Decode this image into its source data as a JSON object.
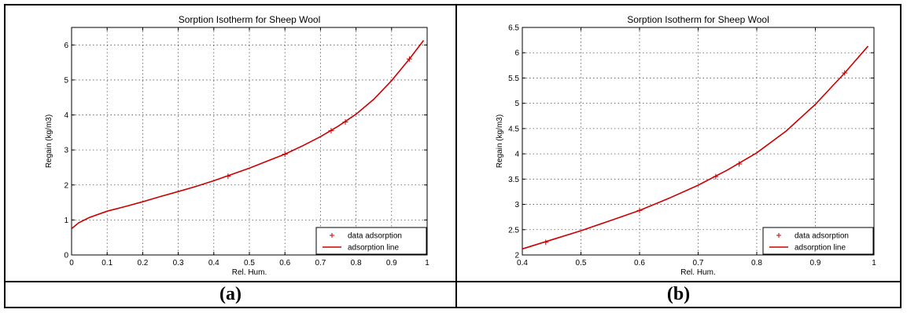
{
  "figure": {
    "caption_a": "(a)",
    "caption_b": "(b)"
  },
  "chart_data": [
    {
      "type": "line",
      "title": "Sorption Isotherm for Sheep Wool",
      "xlabel": "Rel. Hum.",
      "ylabel": "Regain (kg/m3)",
      "xlim": [
        0,
        1
      ],
      "ylim": [
        0,
        6.5
      ],
      "xticks": [
        "0",
        "0.1",
        "0.2",
        "0.3",
        "0.4",
        "0.5",
        "0.6",
        "0.7",
        "0.8",
        "0.9",
        "1"
      ],
      "yticks": [
        "0",
        "1",
        "2",
        "3",
        "4",
        "5",
        "6"
      ],
      "grid": true,
      "legend_position": "bottom-right",
      "series": [
        {
          "name": "data adsorption",
          "marker": "+",
          "color": "#cc0000",
          "x": [
            0.44,
            0.6,
            0.73,
            0.77,
            0.95
          ],
          "y": [
            2.25,
            2.88,
            3.55,
            3.8,
            5.6
          ]
        },
        {
          "name": "adsorption line",
          "line": "solid",
          "color": "#cc0000",
          "x": [
            0.0,
            0.02,
            0.05,
            0.1,
            0.15,
            0.2,
            0.25,
            0.3,
            0.35,
            0.4,
            0.45,
            0.5,
            0.55,
            0.6,
            0.65,
            0.7,
            0.75,
            0.8,
            0.85,
            0.9,
            0.95,
            0.99
          ],
          "y": [
            0.75,
            0.92,
            1.07,
            1.25,
            1.38,
            1.52,
            1.67,
            1.81,
            1.96,
            2.12,
            2.3,
            2.48,
            2.68,
            2.88,
            3.12,
            3.38,
            3.68,
            4.02,
            4.45,
            4.98,
            5.6,
            6.13
          ]
        }
      ]
    },
    {
      "type": "line",
      "title": "Sorption Isotherm for Sheep Wool",
      "xlabel": "Rel. Hum.",
      "ylabel": "Regain (kg/m3)",
      "xlim": [
        0.4,
        1
      ],
      "ylim": [
        2,
        6.5
      ],
      "xticks": [
        "0.4",
        "0.5",
        "0.6",
        "0.7",
        "0.8",
        "0.9",
        "1"
      ],
      "yticks": [
        "2",
        "2.5",
        "3",
        "3.5",
        "4",
        "4.5",
        "5",
        "5.5",
        "6",
        "6.5"
      ],
      "grid": true,
      "legend_position": "bottom-right",
      "series": [
        {
          "name": "data adsorption",
          "marker": "+",
          "color": "#cc0000",
          "x": [
            0.44,
            0.6,
            0.73,
            0.77,
            0.95
          ],
          "y": [
            2.25,
            2.88,
            3.55,
            3.8,
            5.6
          ]
        },
        {
          "name": "adsorption line",
          "line": "solid",
          "color": "#cc0000",
          "x": [
            0.4,
            0.45,
            0.5,
            0.55,
            0.6,
            0.65,
            0.7,
            0.75,
            0.8,
            0.85,
            0.9,
            0.95,
            0.99
          ],
          "y": [
            2.12,
            2.3,
            2.48,
            2.68,
            2.88,
            3.12,
            3.38,
            3.68,
            4.02,
            4.45,
            4.98,
            5.6,
            6.13
          ]
        }
      ]
    }
  ]
}
